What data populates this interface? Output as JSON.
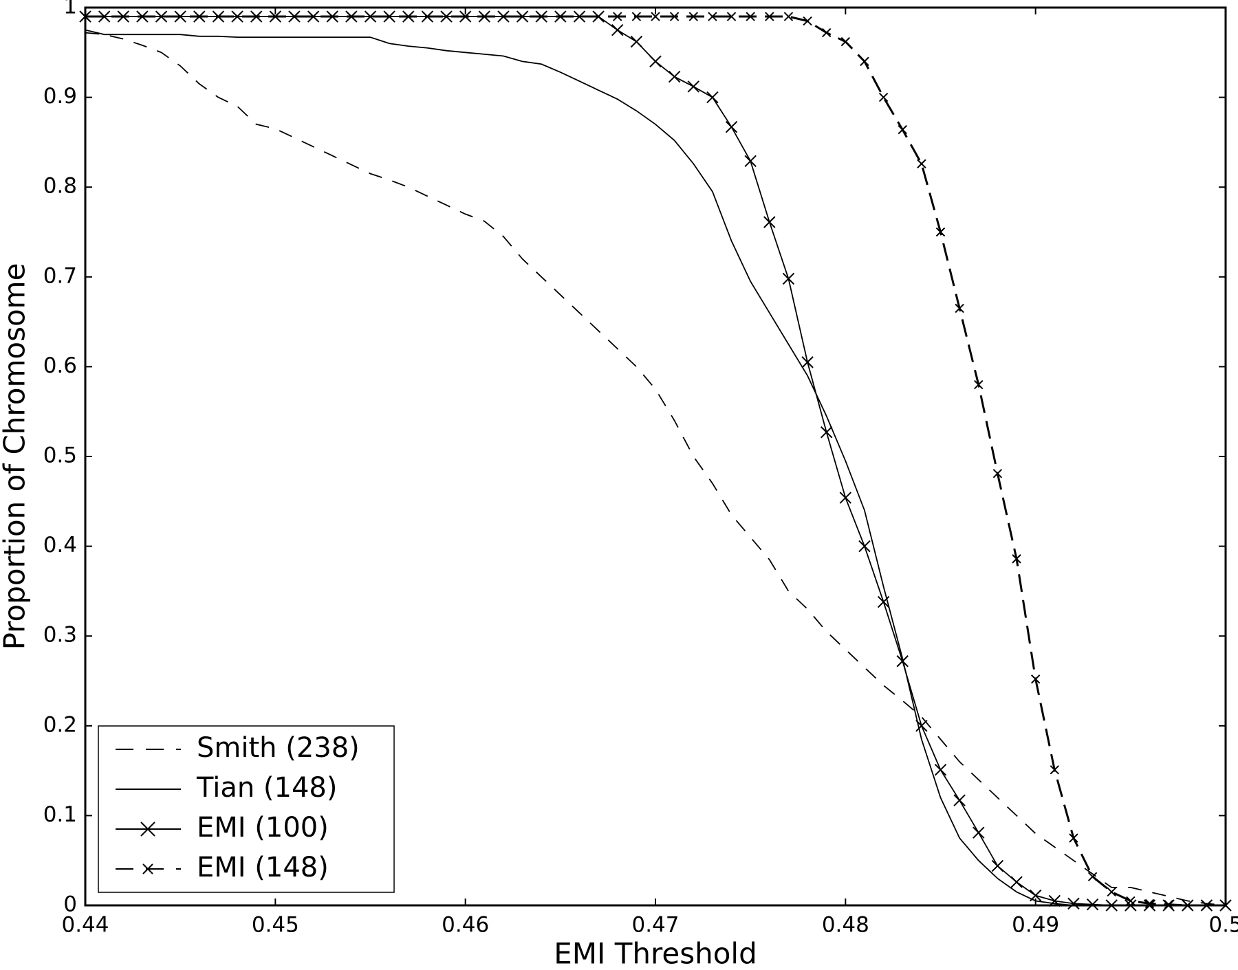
{
  "chart_data": {
    "type": "line",
    "xlabel": "EMI Threshold",
    "ylabel": "Proportion of Chromosome",
    "x": [
      0.44,
      0.441,
      0.442,
      0.443,
      0.444,
      0.445,
      0.446,
      0.447,
      0.448,
      0.449,
      0.45,
      0.451,
      0.452,
      0.453,
      0.454,
      0.455,
      0.456,
      0.457,
      0.458,
      0.459,
      0.46,
      0.461,
      0.462,
      0.463,
      0.464,
      0.465,
      0.466,
      0.467,
      0.468,
      0.469,
      0.47,
      0.471,
      0.472,
      0.473,
      0.474,
      0.475,
      0.476,
      0.477,
      0.478,
      0.479,
      0.48,
      0.481,
      0.482,
      0.483,
      0.484,
      0.485,
      0.486,
      0.487,
      0.488,
      0.489,
      0.49,
      0.491,
      0.492,
      0.493,
      0.494,
      0.495,
      0.496,
      0.497,
      0.498,
      0.499,
      0.5
    ],
    "series": [
      {
        "name": "Smith (238)",
        "color": "#000000",
        "dash": true,
        "marker": false,
        "values": [
          0.972,
          0.97,
          0.965,
          0.958,
          0.95,
          0.935,
          0.915,
          0.9,
          0.89,
          0.87,
          0.865,
          0.855,
          0.845,
          0.835,
          0.825,
          0.815,
          0.808,
          0.8,
          0.79,
          0.78,
          0.77,
          0.762,
          0.745,
          0.72,
          0.7,
          0.68,
          0.66,
          0.64,
          0.62,
          0.6,
          0.575,
          0.54,
          0.5,
          0.47,
          0.435,
          0.41,
          0.385,
          0.35,
          0.33,
          0.305,
          0.285,
          0.265,
          0.245,
          0.228,
          0.21,
          0.185,
          0.16,
          0.14,
          0.12,
          0.1,
          0.08,
          0.065,
          0.05,
          0.035,
          0.02,
          0.02,
          0.015,
          0.01,
          0.005,
          0.002,
          0
        ]
      },
      {
        "name": "Tian (148)",
        "color": "#000000",
        "dash": false,
        "marker": false,
        "values": [
          0.975,
          0.97,
          0.97,
          0.97,
          0.97,
          0.97,
          0.968,
          0.968,
          0.967,
          0.967,
          0.967,
          0.967,
          0.967,
          0.967,
          0.967,
          0.967,
          0.96,
          0.957,
          0.955,
          0.952,
          0.95,
          0.948,
          0.946,
          0.94,
          0.937,
          0.928,
          0.918,
          0.908,
          0.898,
          0.885,
          0.87,
          0.852,
          0.826,
          0.795,
          0.74,
          0.695,
          0.66,
          0.625,
          0.59,
          0.545,
          0.495,
          0.44,
          0.355,
          0.275,
          0.185,
          0.12,
          0.075,
          0.05,
          0.03,
          0.015,
          0.005,
          0.002,
          0,
          0,
          0,
          0,
          0,
          0,
          0,
          0,
          0
        ]
      },
      {
        "name": "EMI (100)",
        "color": "#000000",
        "dash": false,
        "marker": true,
        "values": [
          0.99,
          0.99,
          0.99,
          0.99,
          0.99,
          0.99,
          0.99,
          0.99,
          0.99,
          0.99,
          0.99,
          0.99,
          0.99,
          0.99,
          0.99,
          0.99,
          0.99,
          0.99,
          0.99,
          0.99,
          0.99,
          0.99,
          0.99,
          0.99,
          0.99,
          0.99,
          0.99,
          0.99,
          0.975,
          0.962,
          0.94,
          0.923,
          0.912,
          0.9,
          0.867,
          0.829,
          0.761,
          0.698,
          0.605,
          0.527,
          0.454,
          0.4,
          0.338,
          0.272,
          0.2,
          0.151,
          0.117,
          0.081,
          0.044,
          0.026,
          0.011,
          0.005,
          0.002,
          0.001,
          0,
          0,
          0,
          0,
          0,
          0,
          0
        ]
      },
      {
        "name": "EMI (148)",
        "color": "#000000",
        "dash": true,
        "marker": true,
        "values": [
          0.99,
          0.99,
          0.99,
          0.99,
          0.99,
          0.99,
          0.99,
          0.99,
          0.99,
          0.99,
          0.99,
          0.99,
          0.99,
          0.99,
          0.99,
          0.99,
          0.99,
          0.99,
          0.99,
          0.99,
          0.99,
          0.99,
          0.99,
          0.99,
          0.99,
          0.99,
          0.99,
          0.99,
          0.99,
          0.99,
          0.99,
          0.99,
          0.99,
          0.99,
          0.99,
          0.99,
          0.99,
          0.99,
          0.985,
          0.972,
          0.962,
          0.94,
          0.9,
          0.864,
          0.826,
          0.75,
          0.665,
          0.58,
          0.481,
          0.386,
          0.252,
          0.151,
          0.075,
          0.032,
          0.015,
          0.005,
          0.002,
          0.001,
          0,
          0,
          0
        ]
      }
    ],
    "xlim": [
      0.44,
      0.5
    ],
    "xticks": [
      0.44,
      0.45,
      0.46,
      0.47,
      0.48,
      0.49,
      0.5
    ],
    "ylim": [
      0,
      1
    ],
    "yticks": [
      0,
      0.1,
      0.2,
      0.3,
      0.4,
      0.5,
      0.6,
      0.7,
      0.8,
      0.9,
      1
    ],
    "grid": false,
    "legend": "lower left"
  }
}
